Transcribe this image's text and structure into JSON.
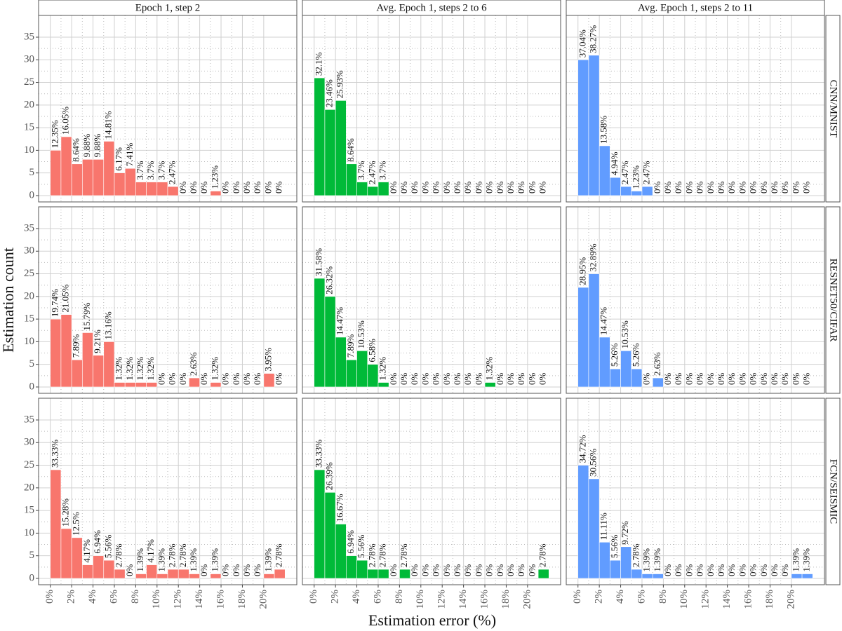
{
  "chart_data": {
    "type": "histogram",
    "x_label": "Estimation error (%)",
    "y_label": "Estimation count",
    "bins": [
      0,
      1,
      2,
      3,
      4,
      5,
      6,
      7,
      8,
      9,
      10,
      11,
      12,
      13,
      14,
      15,
      16,
      17,
      18,
      19,
      20,
      21,
      22
    ],
    "xlim": [
      -1.1,
      23.1
    ],
    "xticks": [
      {
        "value": 0,
        "label": "0%"
      },
      {
        "value": 2,
        "label": "2%"
      },
      {
        "value": 4,
        "label": "4%"
      },
      {
        "value": 6,
        "label": "6%"
      },
      {
        "value": 8,
        "label": "8%"
      },
      {
        "value": 10,
        "label": "10%"
      },
      {
        "value": 12,
        "label": "12%"
      },
      {
        "value": 14,
        "label": "14%"
      },
      {
        "value": 16,
        "label": "16%"
      },
      {
        "value": 18,
        "label": "18%"
      },
      {
        "value": 20,
        "label": "20%"
      }
    ],
    "ylim": [
      -1.4,
      39.8
    ],
    "yticks": [
      0,
      5,
      10,
      15,
      20,
      25,
      30,
      35
    ],
    "grid": true,
    "columns": [
      "Epoch 1, step 2",
      "Avg. Epoch 1, steps 2 to 6",
      "Avg. Epoch 1, steps 2 to 11"
    ],
    "rows": [
      {
        "name": "CNN/MNIST",
        "panels": [
          {
            "color": "#f8766d",
            "values": [
              10,
              13,
              7,
              8,
              8,
              12,
              5,
              6,
              3,
              3,
              3,
              2,
              0,
              0,
              0,
              1,
              0,
              0,
              0,
              0,
              0,
              0
            ],
            "bar_labels": [
              "12.35%",
              "16.05%",
              "8.64%",
              "9.88%",
              "9.88%",
              "14.81%",
              "6.17%",
              "7.41%",
              "3.7%",
              "3.7%",
              "3.7%",
              "2.47%",
              "0%",
              "0%",
              "0%",
              "1.23%",
              "0%",
              "0%",
              "0%",
              "0%",
              "0%",
              "0%"
            ]
          },
          {
            "color": "#00ba38",
            "values": [
              26,
              19,
              21,
              7,
              3,
              2,
              3,
              0,
              0,
              0,
              0,
              0,
              0,
              0,
              0,
              0,
              0,
              0,
              0,
              0,
              0,
              0
            ],
            "bar_labels": [
              "32.1%",
              "23.46%",
              "25.93%",
              "8.64%",
              "3.7%",
              "2.47%",
              "3.7%",
              "0%",
              "0%",
              "0%",
              "0%",
              "0%",
              "0%",
              "0%",
              "0%",
              "0%",
              "0%",
              "0%",
              "0%",
              "0%",
              "0%",
              "0%"
            ]
          },
          {
            "color": "#619cff",
            "values": [
              30,
              31,
              11,
              4,
              2,
              1,
              2,
              0,
              0,
              0,
              0,
              0,
              0,
              0,
              0,
              0,
              0,
              0,
              0,
              0,
              0,
              0
            ],
            "bar_labels": [
              "37.04%",
              "38.27%",
              "13.58%",
              "4.94%",
              "2.47%",
              "1.23%",
              "2.47%",
              "0%",
              "0%",
              "0%",
              "0%",
              "0%",
              "0%",
              "0%",
              "0%",
              "0%",
              "0%",
              "0%",
              "0%",
              "0%",
              "0%",
              "0%"
            ]
          }
        ]
      },
      {
        "name": "RESNET50/CIFAR",
        "panels": [
          {
            "color": "#f8766d",
            "values": [
              15,
              16,
              6,
              12,
              7,
              10,
              1,
              1,
              1,
              1,
              0,
              0,
              0,
              2,
              0,
              1,
              0,
              0,
              0,
              0,
              3,
              0
            ],
            "bar_labels": [
              "19.74%",
              "21.05%",
              "7.89%",
              "15.79%",
              "9.21%",
              "13.16%",
              "1.32%",
              "1.32%",
              "1.32%",
              "1.32%",
              "0%",
              "0%",
              "0%",
              "2.63%",
              "0%",
              "1.32%",
              "0%",
              "0%",
              "0%",
              "0%",
              "3.95%",
              "0%"
            ]
          },
          {
            "color": "#00ba38",
            "values": [
              24,
              20,
              11,
              6,
              8,
              5,
              1,
              0,
              0,
              0,
              0,
              0,
              0,
              0,
              0,
              0,
              1,
              0,
              0,
              0,
              0,
              0
            ],
            "bar_labels": [
              "31.58%",
              "26.32%",
              "14.47%",
              "7.89%",
              "10.53%",
              "6.58%",
              "1.32%",
              "0%",
              "0%",
              "0%",
              "0%",
              "0%",
              "0%",
              "0%",
              "0%",
              "0%",
              "1.32%",
              "0%",
              "0%",
              "0%",
              "0%",
              "0%"
            ]
          },
          {
            "color": "#619cff",
            "values": [
              22,
              25,
              11,
              4,
              8,
              4,
              0,
              2,
              0,
              0,
              0,
              0,
              0,
              0,
              0,
              0,
              0,
              0,
              0,
              0,
              0,
              0
            ],
            "bar_labels": [
              "28.95%",
              "32.89%",
              "14.47%",
              "5.26%",
              "10.53%",
              "5.26%",
              "0%",
              "2.63%",
              "0%",
              "0%",
              "0%",
              "0%",
              "0%",
              "0%",
              "0%",
              "0%",
              "0%",
              "0%",
              "0%",
              "0%",
              "0%",
              "0%"
            ]
          }
        ]
      },
      {
        "name": "FCN/SEISMIC",
        "panels": [
          {
            "color": "#f8766d",
            "values": [
              24,
              11,
              9,
              3,
              5,
              4,
              2,
              0,
              1,
              3,
              1,
              2,
              2,
              1,
              0,
              1,
              0,
              0,
              0,
              0,
              1,
              2
            ],
            "bar_labels": [
              "33.33%",
              "15.28%",
              "12.5%",
              "4.17%",
              "6.94%",
              "5.56%",
              "2.78%",
              "0%",
              "1.39%",
              "4.17%",
              "1.39%",
              "2.78%",
              "2.78%",
              "1.39%",
              "0%",
              "1.39%",
              "0%",
              "0%",
              "0%",
              "0%",
              "1.39%",
              "2.78%"
            ]
          },
          {
            "color": "#00ba38",
            "values": [
              24,
              19,
              12,
              5,
              4,
              2,
              2,
              0,
              2,
              0,
              0,
              0,
              0,
              0,
              0,
              0,
              0,
              0,
              0,
              0,
              0,
              2
            ],
            "bar_labels": [
              "33.33%",
              "26.39%",
              "16.67%",
              "6.94%",
              "5.56%",
              "2.78%",
              "2.78%",
              "0%",
              "2.78%",
              "0%",
              "0%",
              "0%",
              "0%",
              "0%",
              "0%",
              "0%",
              "0%",
              "0%",
              "0%",
              "0%",
              "0%",
              "2.78%"
            ]
          },
          {
            "color": "#619cff",
            "values": [
              25,
              22,
              8,
              4,
              7,
              2,
              1,
              1,
              0,
              0,
              0,
              0,
              0,
              0,
              0,
              0,
              0,
              0,
              0,
              0,
              1,
              1
            ],
            "bar_labels": [
              "34.72%",
              "30.56%",
              "11.11%",
              "5.56%",
              "9.72%",
              "2.78%",
              "1.39%",
              "1.39%",
              "0%",
              "0%",
              "0%",
              "0%",
              "0%",
              "0%",
              "0%",
              "0%",
              "0%",
              "0%",
              "0%",
              "0%",
              "1.39%",
              "1.39%"
            ]
          }
        ]
      }
    ]
  }
}
